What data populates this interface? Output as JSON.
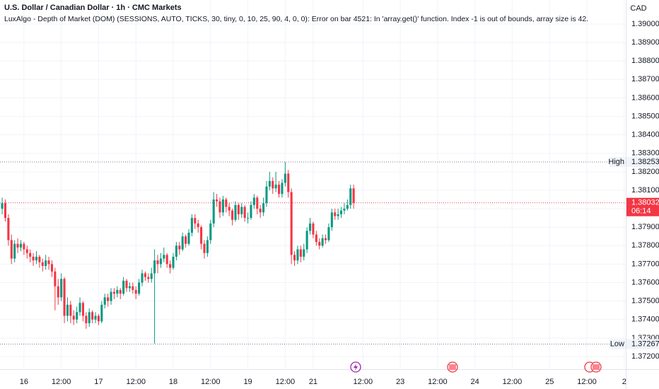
{
  "header": {
    "title": "U.S. Dollar / Canadian Dollar · 1h · CMC Markets",
    "indicator": "LuxAlgo - Depth of Market (DOM) (SESSIONS, AUTO, TICKS, 30, tiny, 0, 10, 25, 90, 4, 0, 0): Error on bar 4521: In 'array.get()' function. Index -1 is out of bounds, array size is 42."
  },
  "chart_data": {
    "type": "candlestick",
    "currency": "CAD",
    "up_color": "#089981",
    "down_color": "#f23645",
    "grid": true,
    "xlim": [
      -0.7,
      200.5
    ],
    "ylim": [
      1.37131,
      1.3913
    ],
    "xticks": [
      {
        "value": 7,
        "label": "16"
      },
      {
        "value": 19,
        "label": "12:00"
      },
      {
        "value": 31,
        "label": "17"
      },
      {
        "value": 43,
        "label": "12:00"
      },
      {
        "value": 55,
        "label": "18"
      },
      {
        "value": 67,
        "label": "12:00"
      },
      {
        "value": 79,
        "label": "19"
      },
      {
        "value": 91,
        "label": "12:00"
      },
      {
        "value": 100,
        "label": "21"
      },
      {
        "value": 116,
        "label": "12:00"
      },
      {
        "value": 128,
        "label": "23"
      },
      {
        "value": 140,
        "label": "12:00"
      },
      {
        "value": 152,
        "label": "24"
      },
      {
        "value": 164,
        "label": "12:00"
      },
      {
        "value": 176,
        "label": "25"
      },
      {
        "value": 188,
        "label": "12:00"
      },
      {
        "value": 200,
        "label": "2"
      }
    ],
    "yticks": [
      {
        "value": 1.39,
        "label": "1.39000"
      },
      {
        "value": 1.389,
        "label": "1.38900"
      },
      {
        "value": 1.388,
        "label": "1.38800"
      },
      {
        "value": 1.387,
        "label": "1.38700"
      },
      {
        "value": 1.386,
        "label": "1.38600"
      },
      {
        "value": 1.385,
        "label": "1.38500"
      },
      {
        "value": 1.384,
        "label": "1.38400"
      },
      {
        "value": 1.383,
        "label": "1.38300"
      },
      {
        "value": 1.382,
        "label": "1.38200"
      },
      {
        "value": 1.381,
        "label": "1.38100"
      },
      {
        "value": 1.38,
        "label": "1.38000"
      },
      {
        "value": 1.379,
        "label": "1.37900"
      },
      {
        "value": 1.378,
        "label": "1.37800"
      },
      {
        "value": 1.377,
        "label": "1.37700"
      },
      {
        "value": 1.376,
        "label": "1.37600"
      },
      {
        "value": 1.375,
        "label": "1.37500"
      },
      {
        "value": 1.374,
        "label": "1.37400"
      },
      {
        "value": 1.373,
        "label": "1.37300"
      },
      {
        "value": 1.372,
        "label": "1.37200"
      }
    ],
    "markers": [
      {
        "label": "High",
        "value": 1.38253
      },
      {
        "label": "Low",
        "value": 1.37267
      }
    ],
    "last_price": {
      "value": 1.38032,
      "countdown": "06:14"
    },
    "open": [
      1.38,
      1.3803,
      1.3795,
      1.3783,
      1.3773,
      1.3781,
      1.3779,
      1.3781,
      1.3778,
      1.3776,
      1.3774,
      1.3772,
      1.3774,
      1.3771,
      1.3769,
      1.3772,
      1.377,
      1.3766,
      1.3758,
      1.3752,
      1.3762,
      1.3742,
      1.3748,
      1.3742,
      1.374,
      1.3744,
      1.3749,
      1.3742,
      1.3738,
      1.3744,
      1.374,
      1.3742,
      1.3739,
      1.3748,
      1.3752,
      1.375,
      1.3755,
      1.3754,
      1.3756,
      1.3754,
      1.3761,
      1.3757,
      1.3758,
      1.3756,
      1.3754,
      1.376,
      1.3765,
      1.3763,
      1.3762,
      1.3765,
      1.3772,
      1.377,
      1.3773,
      1.3775,
      1.377,
      1.3768,
      1.3774,
      1.378,
      1.3778,
      1.3785,
      1.3781,
      1.3787,
      1.3795,
      1.3792,
      1.379,
      1.3781,
      1.3776,
      1.3783,
      1.3792,
      1.3805,
      1.3804,
      1.3798,
      1.3805,
      1.3801,
      1.3799,
      1.3794,
      1.3802,
      1.3797,
      1.3801,
      1.3795,
      1.3795,
      1.3802,
      1.3806,
      1.38,
      1.3798,
      1.3803,
      1.3812,
      1.3815,
      1.3811,
      1.3813,
      1.3808,
      1.3814,
      1.3819,
      1.3809,
      1.3775,
      1.3772,
      1.3778,
      1.3774,
      1.3778,
      1.3788,
      1.3792,
      1.3786,
      1.3782,
      1.378,
      1.3784,
      1.3783,
      1.379,
      1.3798,
      1.3796,
      1.3797,
      1.3799,
      1.38,
      1.3802,
      1.3811
    ],
    "high": [
      1.3806,
      1.3805,
      1.3797,
      1.3786,
      1.3783,
      1.3784,
      1.3783,
      1.3782,
      1.378,
      1.3778,
      1.3776,
      1.3777,
      1.3775,
      1.3773,
      1.3775,
      1.3774,
      1.3772,
      1.3768,
      1.3762,
      1.3765,
      1.3763,
      1.3752,
      1.375,
      1.3745,
      1.3747,
      1.3752,
      1.375,
      1.3744,
      1.3746,
      1.3745,
      1.3744,
      1.3743,
      1.375,
      1.3754,
      1.3754,
      1.3757,
      1.3757,
      1.3758,
      1.3757,
      1.3763,
      1.3762,
      1.376,
      1.376,
      1.3758,
      1.3762,
      1.3767,
      1.3766,
      1.3765,
      1.3768,
      1.3778,
      1.3775,
      1.3776,
      1.3779,
      1.3776,
      1.3772,
      1.3776,
      1.3782,
      1.3782,
      1.3787,
      1.3786,
      1.3789,
      1.3797,
      1.3797,
      1.3794,
      1.3791,
      1.3783,
      1.3785,
      1.3794,
      1.3809,
      1.3808,
      1.3806,
      1.3807,
      1.3806,
      1.3803,
      1.38,
      1.3804,
      1.3803,
      1.3803,
      1.3802,
      1.3798,
      1.3804,
      1.3808,
      1.3807,
      1.3802,
      1.3806,
      1.3815,
      1.382,
      1.3817,
      1.382,
      1.3815,
      1.3816,
      1.38253,
      1.3821,
      1.3811,
      1.3777,
      1.378,
      1.378,
      1.3781,
      1.379,
      1.3795,
      1.3793,
      1.3788,
      1.3784,
      1.3786,
      1.3786,
      1.3792,
      1.38,
      1.38,
      1.38,
      1.3801,
      1.3803,
      1.3805,
      1.3813,
      1.3813
    ],
    "low": [
      1.3797,
      1.3793,
      1.378,
      1.377,
      1.3771,
      1.3776,
      1.3777,
      1.3775,
      1.3773,
      1.3771,
      1.3769,
      1.377,
      1.3768,
      1.3766,
      1.3767,
      1.3767,
      1.3763,
      1.3745,
      1.3748,
      1.375,
      1.3738,
      1.3739,
      1.3738,
      1.3737,
      1.3738,
      1.3742,
      1.3739,
      1.3735,
      1.3736,
      1.3738,
      1.3738,
      1.3737,
      1.3738,
      1.3746,
      1.3747,
      1.3748,
      1.3751,
      1.3752,
      1.3751,
      1.3753,
      1.3755,
      1.3755,
      1.3754,
      1.3751,
      1.3753,
      1.3758,
      1.3761,
      1.376,
      1.376,
      1.3727,
      1.3765,
      1.3768,
      1.3771,
      1.3768,
      1.3765,
      1.3767,
      1.3772,
      1.3775,
      1.3777,
      1.3779,
      1.378,
      1.3785,
      1.3789,
      1.3787,
      1.3778,
      1.3773,
      1.3774,
      1.3781,
      1.379,
      1.3801,
      1.3795,
      1.3796,
      1.3798,
      1.3796,
      1.3791,
      1.3793,
      1.3794,
      1.3795,
      1.3793,
      1.3792,
      1.3794,
      1.38,
      1.3797,
      1.3795,
      1.3796,
      1.3801,
      1.381,
      1.3808,
      1.3809,
      1.3806,
      1.3806,
      1.3812,
      1.3806,
      1.377,
      1.3769,
      1.377,
      1.3771,
      1.3772,
      1.3776,
      1.3786,
      1.3784,
      1.378,
      1.3778,
      1.3779,
      1.3781,
      1.3782,
      1.3788,
      1.3794,
      1.3794,
      1.3795,
      1.3797,
      1.3799,
      1.38,
      1.38
    ],
    "close": [
      1.3803,
      1.3795,
      1.3783,
      1.3773,
      1.3781,
      1.3779,
      1.3781,
      1.3778,
      1.3776,
      1.3774,
      1.3772,
      1.3774,
      1.3771,
      1.3769,
      1.3772,
      1.377,
      1.3766,
      1.3758,
      1.3752,
      1.3762,
      1.3742,
      1.3748,
      1.3742,
      1.374,
      1.3744,
      1.3749,
      1.3742,
      1.3738,
      1.3744,
      1.374,
      1.3742,
      1.3739,
      1.3748,
      1.3752,
      1.375,
      1.3755,
      1.3754,
      1.3756,
      1.3754,
      1.3761,
      1.3757,
      1.3758,
      1.3756,
      1.3754,
      1.376,
      1.3765,
      1.3763,
      1.3762,
      1.3765,
      1.3772,
      1.377,
      1.3773,
      1.3775,
      1.377,
      1.3768,
      1.3774,
      1.378,
      1.3778,
      1.3785,
      1.3781,
      1.3787,
      1.3795,
      1.3792,
      1.379,
      1.3781,
      1.3776,
      1.3783,
      1.3792,
      1.3805,
      1.3804,
      1.3798,
      1.3805,
      1.3801,
      1.3799,
      1.3794,
      1.3802,
      1.3797,
      1.3801,
      1.3795,
      1.3795,
      1.3802,
      1.3806,
      1.38,
      1.3798,
      1.3803,
      1.3812,
      1.3815,
      1.3811,
      1.3813,
      1.3808,
      1.3814,
      1.3819,
      1.3809,
      1.3775,
      1.3772,
      1.3778,
      1.3774,
      1.3778,
      1.3788,
      1.3792,
      1.3786,
      1.3782,
      1.378,
      1.3784,
      1.3783,
      1.379,
      1.3798,
      1.3796,
      1.3797,
      1.3799,
      1.38,
      1.3802,
      1.3811,
      1.38032
    ]
  }
}
